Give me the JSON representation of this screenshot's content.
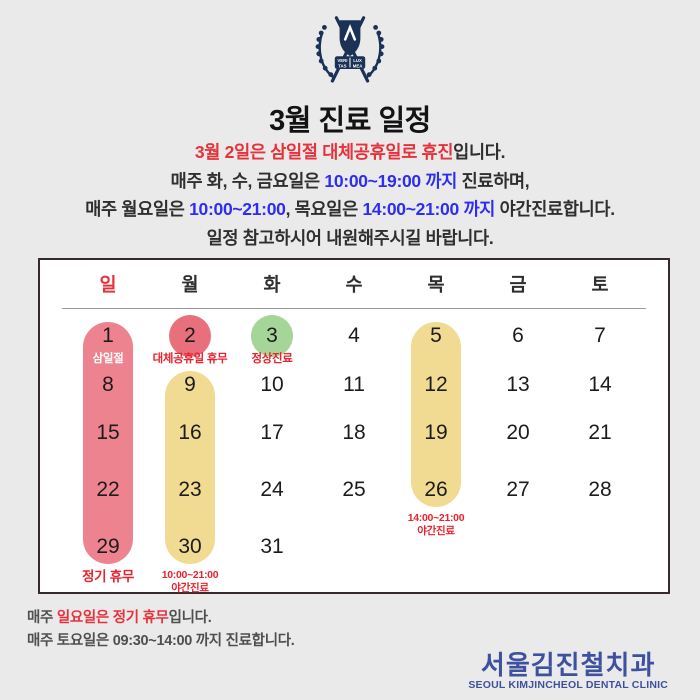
{
  "colors": {
    "red": "#e7323b",
    "blue": "#2e2ef2",
    "dark": "#2f2f2f",
    "gray": "#4f4f4f",
    "navy": "#1c3156",
    "clinic_navy": "#3e51a0",
    "pink_pill": "#ee8390",
    "yellow_pill": "#f1db92",
    "red_circle": "#e8707c",
    "green_circle": "#a6d59a"
  },
  "header": {
    "title": "3월 진료 일정",
    "crest_motto": {
      "w1": "VERI",
      "w2": "LUX",
      "w3": "TAS",
      "w4": "MEA"
    }
  },
  "notice": {
    "lines": [
      [
        {
          "text": "3월 2일은 삼일절 대체공휴일로 휴진",
          "color": "red"
        },
        {
          "text": "입니다.",
          "color": "dark"
        }
      ],
      [
        {
          "text": "매주 화, 수, 금요일은 ",
          "color": "dark"
        },
        {
          "text": "10:00~19:00 까지",
          "color": "blue"
        },
        {
          "text": " 진료하며,",
          "color": "dark"
        }
      ],
      [
        {
          "text": "매주 월요일은 ",
          "color": "dark"
        },
        {
          "text": "10:00~21:00",
          "color": "blue"
        },
        {
          "text": ", 목요일은 ",
          "color": "dark"
        },
        {
          "text": "14:00~21:00 까지",
          "color": "blue"
        },
        {
          "text": " 야간진료합니다.",
          "color": "dark"
        }
      ],
      [
        {
          "text": "일정 참고하시어 내원해주시길 바랍니다.",
          "color": "dark"
        }
      ]
    ]
  },
  "calendar": {
    "weekdays": [
      {
        "label": "일",
        "color": "#e7323b"
      },
      {
        "label": "월"
      },
      {
        "label": "화"
      },
      {
        "label": "수"
      },
      {
        "label": "목"
      },
      {
        "label": "금"
      },
      {
        "label": "토"
      }
    ],
    "weeks": [
      [
        1,
        2,
        3,
        4,
        5,
        6,
        7
      ],
      [
        8,
        9,
        10,
        11,
        12,
        13,
        14
      ],
      [
        15,
        16,
        17,
        18,
        19,
        20,
        21
      ],
      [
        22,
        23,
        24,
        25,
        26,
        27,
        28
      ],
      [
        29,
        30,
        31,
        null,
        null,
        null,
        null
      ]
    ],
    "highlights": {
      "pills": [
        {
          "name": "sunday-closed-pill",
          "col": 0,
          "from_row": 0,
          "to_row": 4,
          "color": "#ee8390"
        },
        {
          "name": "monday-night-pill",
          "col": 1,
          "from_row": 1,
          "to_row": 4,
          "color": "#f1db92"
        },
        {
          "name": "thursday-night-pill",
          "col": 4,
          "from_row": 0,
          "to_row": 3,
          "color": "#f1db92"
        }
      ],
      "circles": [
        {
          "name": "substitute-holiday-circle",
          "col": 1,
          "row": 0,
          "color": "#e8707c"
        },
        {
          "name": "normal-treatment-circle",
          "col": 2,
          "row": 0,
          "color": "#a6d59a"
        }
      ]
    },
    "labels": [
      {
        "name": "samiljeol-label",
        "col": 0,
        "row": 0,
        "style": "white-head",
        "lines": [
          "삼일절"
        ]
      },
      {
        "name": "substitute-holiday-label",
        "col": 1,
        "row": 0,
        "style": "red-head",
        "lines": [
          "대체공휴일 휴무"
        ]
      },
      {
        "name": "normal-treatment-label",
        "col": 2,
        "row": 0,
        "style": "red-head",
        "lines": [
          "정상진료"
        ]
      },
      {
        "name": "thursday-night-label",
        "col": 4,
        "row": 3,
        "style": "red-small",
        "lines": [
          "14:00~21:00",
          "야간진료"
        ]
      },
      {
        "name": "sunday-regular-closed-label",
        "col": 0,
        "row": 4,
        "style": "red-big",
        "lines": [
          "정기 휴무"
        ]
      },
      {
        "name": "monday-night-label",
        "col": 1,
        "row": 4,
        "style": "red-small",
        "lines": [
          "10:00~21:00",
          "야간진료"
        ]
      }
    ]
  },
  "footer": {
    "notes": [
      [
        {
          "text": "매주 ",
          "color": "gray"
        },
        {
          "text": "일요일은 정기 휴무",
          "color": "red"
        },
        {
          "text": "입니다.",
          "color": "gray"
        }
      ],
      [
        {
          "text": "매주 토요일은 09:30~14:00 까지 진료합니다.",
          "color": "gray"
        }
      ]
    ],
    "clinic_korean": "서울김진철치과",
    "clinic_english": "SEOUL KIMJINCHEOL DENTAL CLINIC"
  }
}
